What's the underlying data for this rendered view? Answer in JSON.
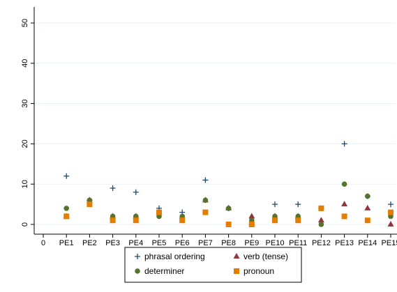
{
  "chart_data": {
    "type": "scatter",
    "x": [
      "0",
      "PE1",
      "PE2",
      "PE3",
      "PE4",
      "PE5",
      "PE6",
      "PE7",
      "PE8",
      "PE9",
      "PE10",
      "PE11",
      "PE12",
      "PE13",
      "PE14",
      "PE15"
    ],
    "ylim": [
      0,
      50
    ],
    "yticks": [
      0,
      10,
      20,
      30,
      40,
      50
    ],
    "grid": "horizontal",
    "legend": "bottom",
    "series": [
      {
        "name": "phrasal ordering",
        "marker": "plus",
        "color": "#1a476f",
        "points": [
          [
            1,
            12
          ],
          [
            2,
            6
          ],
          [
            3,
            9
          ],
          [
            4,
            8
          ],
          [
            5,
            4
          ],
          [
            6,
            3
          ],
          [
            7,
            11
          ],
          [
            8,
            4
          ],
          [
            9,
            0
          ],
          [
            10,
            5
          ],
          [
            11,
            5
          ],
          [
            12,
            4
          ],
          [
            13,
            20
          ],
          [
            14,
            7
          ],
          [
            15,
            5
          ]
        ]
      },
      {
        "name": "verb (tense)",
        "marker": "triangle",
        "color": "#90353b",
        "points": [
          [
            1,
            2
          ],
          [
            2,
            6
          ],
          [
            3,
            2
          ],
          [
            4,
            2
          ],
          [
            5,
            3
          ],
          [
            6,
            2
          ],
          [
            7,
            6
          ],
          [
            8,
            4
          ],
          [
            9,
            2
          ],
          [
            10,
            2
          ],
          [
            11,
            2
          ],
          [
            12,
            1
          ],
          [
            13,
            5
          ],
          [
            14,
            4
          ],
          [
            15,
            0
          ]
        ]
      },
      {
        "name": "determiner",
        "marker": "circle",
        "color": "#55752f",
        "points": [
          [
            1,
            4
          ],
          [
            2,
            6
          ],
          [
            3,
            2
          ],
          [
            4,
            2
          ],
          [
            5,
            2
          ],
          [
            6,
            2
          ],
          [
            7,
            6
          ],
          [
            8,
            4
          ],
          [
            9,
            1
          ],
          [
            10,
            2
          ],
          [
            11,
            2
          ],
          [
            12,
            0
          ],
          [
            13,
            10
          ],
          [
            14,
            7
          ],
          [
            15,
            2
          ]
        ]
      },
      {
        "name": "pronoun",
        "marker": "square",
        "color": "#e37e00",
        "points": [
          [
            1,
            2
          ],
          [
            2,
            5
          ],
          [
            3,
            1
          ],
          [
            4,
            1
          ],
          [
            5,
            3
          ],
          [
            6,
            1
          ],
          [
            7,
            3
          ],
          [
            8,
            0
          ],
          [
            9,
            0
          ],
          [
            10,
            1
          ],
          [
            11,
            1
          ],
          [
            12,
            4
          ],
          [
            13,
            2
          ],
          [
            14,
            1
          ],
          [
            15,
            3
          ]
        ]
      }
    ]
  }
}
